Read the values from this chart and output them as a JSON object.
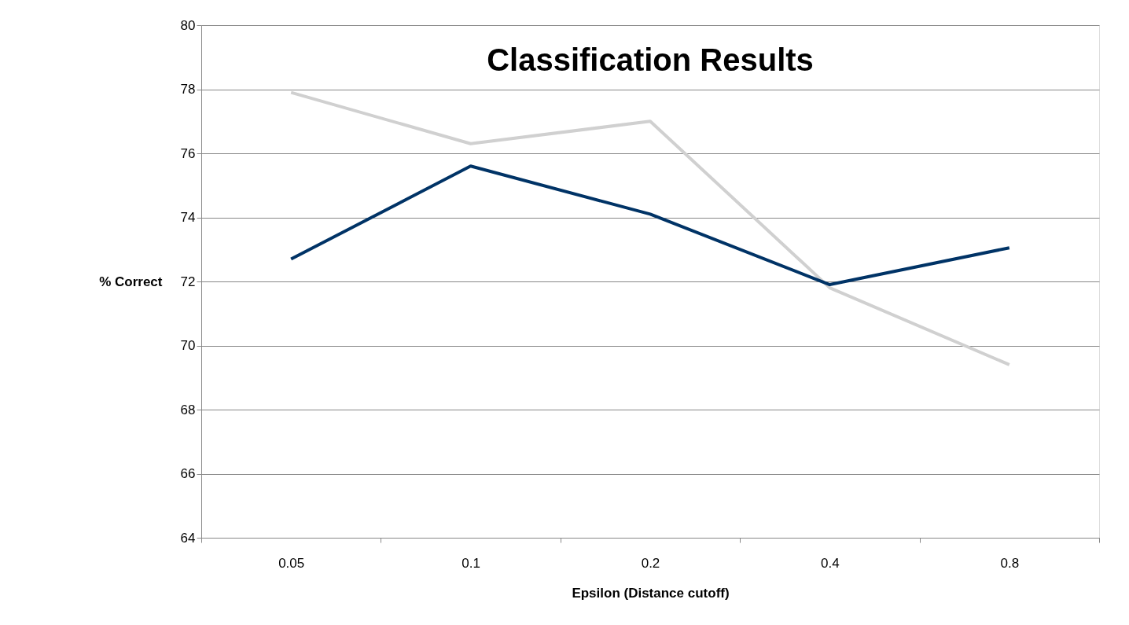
{
  "chart_data": {
    "type": "line",
    "title": "Classification Results",
    "xlabel": "Epsilon (Distance cutoff)",
    "ylabel": "% Correct",
    "categories": [
      "0.05",
      "0.1",
      "0.2",
      "0.4",
      "0.8"
    ],
    "series": [
      {
        "color": "#d0d0d0",
        "values": [
          77.9,
          76.3,
          77.0,
          71.8,
          69.4
        ]
      },
      {
        "color": "#003366",
        "values": [
          72.7,
          75.6,
          74.1,
          71.9,
          73.05
        ]
      }
    ],
    "ylim": [
      64,
      80
    ],
    "yticks": [
      64,
      66,
      68,
      70,
      72,
      74,
      76,
      78,
      80
    ],
    "grid": "y",
    "marker": "none",
    "line_style": "solid"
  }
}
